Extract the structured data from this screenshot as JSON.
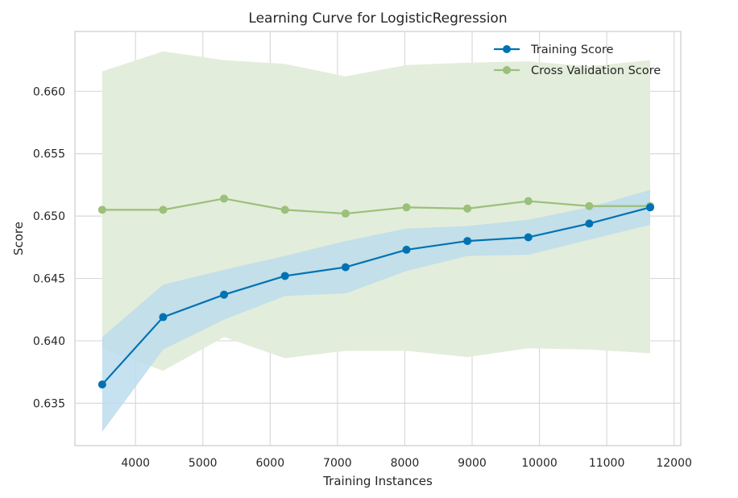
{
  "chart_data": {
    "type": "line",
    "title": "Learning Curve for LogisticRegression",
    "xlabel": "Training Instances",
    "ylabel": "Score",
    "xlim": [
      3100,
      12100
    ],
    "ylim": [
      0.6316,
      0.6648
    ],
    "x_ticks": [
      4000,
      5000,
      6000,
      7000,
      8000,
      9000,
      10000,
      11000,
      12000
    ],
    "y_ticks": [
      0.635,
      0.64,
      0.645,
      0.65,
      0.655,
      0.66
    ],
    "y_tick_labels": [
      "0.635",
      "0.640",
      "0.645",
      "0.650",
      "0.655",
      "0.660"
    ],
    "grid": true,
    "legend_position": "top-right",
    "x": [
      3505,
      4410,
      5315,
      6220,
      7120,
      8025,
      8930,
      9835,
      10740,
      11645
    ],
    "series": [
      {
        "name": "Training Score",
        "color": "#0072b2",
        "values": [
          0.6365,
          0.6419,
          0.6437,
          0.6452,
          0.6459,
          0.6473,
          0.648,
          0.6483,
          0.6494,
          0.6507
        ],
        "band_upper": [
          0.6403,
          0.6445,
          0.6457,
          0.6468,
          0.648,
          0.649,
          0.6492,
          0.6497,
          0.6507,
          0.6521
        ],
        "band_lower": [
          0.6327,
          0.6393,
          0.6417,
          0.6436,
          0.6438,
          0.6456,
          0.6468,
          0.6469,
          0.6481,
          0.6493
        ],
        "band_color": "#bcdcec"
      },
      {
        "name": "Cross Validation Score",
        "color": "#9ac07a",
        "values": [
          0.6505,
          0.6505,
          0.6514,
          0.6505,
          0.6502,
          0.6507,
          0.6506,
          0.6512,
          0.6508,
          0.6508
        ],
        "band_upper": [
          0.6616,
          0.6632,
          0.6625,
          0.6622,
          0.6612,
          0.6621,
          0.6623,
          0.6624,
          0.662,
          0.6625
        ],
        "band_lower": [
          0.6394,
          0.6376,
          0.6403,
          0.6386,
          0.6392,
          0.6392,
          0.6387,
          0.6394,
          0.6393,
          0.639
        ],
        "band_color": "#e3eddb"
      }
    ]
  }
}
